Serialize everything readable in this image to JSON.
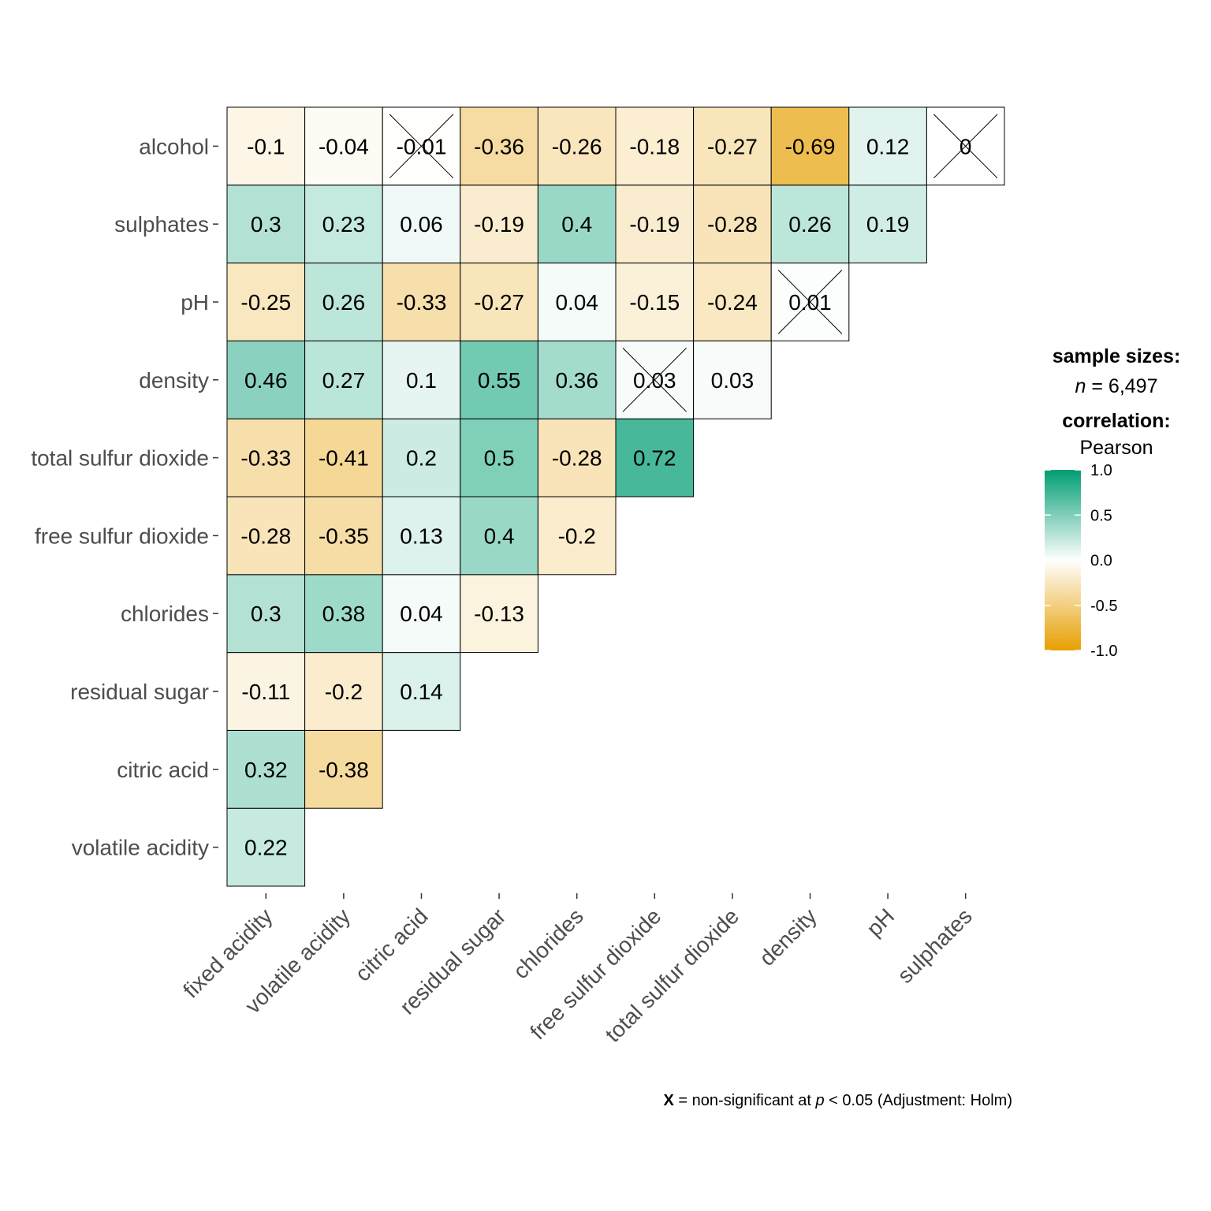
{
  "chart_data": {
    "type": "heatmap",
    "x_categories": [
      "fixed acidity",
      "volatile acidity",
      "citric acid",
      "residual sugar",
      "chlorides",
      "free sulfur dioxide",
      "total sulfur dioxide",
      "density",
      "pH",
      "sulphates"
    ],
    "y_categories": [
      "volatile acidity",
      "citric acid",
      "residual sugar",
      "chlorides",
      "free sulfur dioxide",
      "total sulfur dioxide",
      "density",
      "pH",
      "sulphates",
      "alcohol"
    ],
    "rows": [
      {
        "label": "volatile acidity",
        "values": [
          "0.22"
        ],
        "nonsig": [
          false
        ]
      },
      {
        "label": "citric acid",
        "values": [
          "0.32",
          "-0.38"
        ],
        "nonsig": [
          false,
          false
        ]
      },
      {
        "label": "residual sugar",
        "values": [
          "-0.11",
          "-0.2",
          "0.14"
        ],
        "nonsig": [
          false,
          false,
          false
        ]
      },
      {
        "label": "chlorides",
        "values": [
          "0.3",
          "0.38",
          "0.04",
          "-0.13"
        ],
        "nonsig": [
          false,
          false,
          false,
          false
        ]
      },
      {
        "label": "free sulfur dioxide",
        "values": [
          "-0.28",
          "-0.35",
          "0.13",
          "0.4",
          "-0.2"
        ],
        "nonsig": [
          false,
          false,
          false,
          false,
          false
        ]
      },
      {
        "label": "total sulfur dioxide",
        "values": [
          "-0.33",
          "-0.41",
          "0.2",
          "0.5",
          "-0.28",
          "0.72"
        ],
        "nonsig": [
          false,
          false,
          false,
          false,
          false,
          false
        ]
      },
      {
        "label": "density",
        "values": [
          "0.46",
          "0.27",
          "0.1",
          "0.55",
          "0.36",
          "0.03",
          "0.03"
        ],
        "nonsig": [
          false,
          false,
          false,
          false,
          false,
          true,
          false
        ]
      },
      {
        "label": "pH",
        "values": [
          "-0.25",
          "0.26",
          "-0.33",
          "-0.27",
          "0.04",
          "-0.15",
          "-0.24",
          "0.01"
        ],
        "nonsig": [
          false,
          false,
          false,
          false,
          false,
          false,
          false,
          true
        ]
      },
      {
        "label": "sulphates",
        "values": [
          "0.3",
          "0.23",
          "0.06",
          "-0.19",
          "0.4",
          "-0.19",
          "-0.28",
          "0.26",
          "0.19"
        ],
        "nonsig": [
          false,
          false,
          false,
          false,
          false,
          false,
          false,
          false,
          false
        ]
      },
      {
        "label": "alcohol",
        "values": [
          "-0.1",
          "-0.04",
          "-0.01",
          "-0.36",
          "-0.26",
          "-0.18",
          "-0.27",
          "-0.69",
          "0.12",
          "0"
        ],
        "nonsig": [
          false,
          false,
          true,
          false,
          false,
          false,
          false,
          false,
          false,
          true
        ]
      }
    ],
    "legend": {
      "title_1": "sample sizes:",
      "n_italic": "n",
      "n_text": " = 6,497",
      "title_2": "correlation:",
      "method": "Pearson",
      "ticks": [
        "1.0",
        "0.5",
        "0.0",
        "-0.5",
        "-1.0"
      ],
      "colors": {
        "high": "#009E73",
        "mid": "#FFFFFF",
        "low": "#E69F00"
      },
      "range": [
        -1,
        1
      ]
    },
    "caption": {
      "bold": "X",
      "text1": " = non-significant at ",
      "italic": "p",
      "text2": " < 0.05 (Adjustment: Holm)"
    }
  }
}
